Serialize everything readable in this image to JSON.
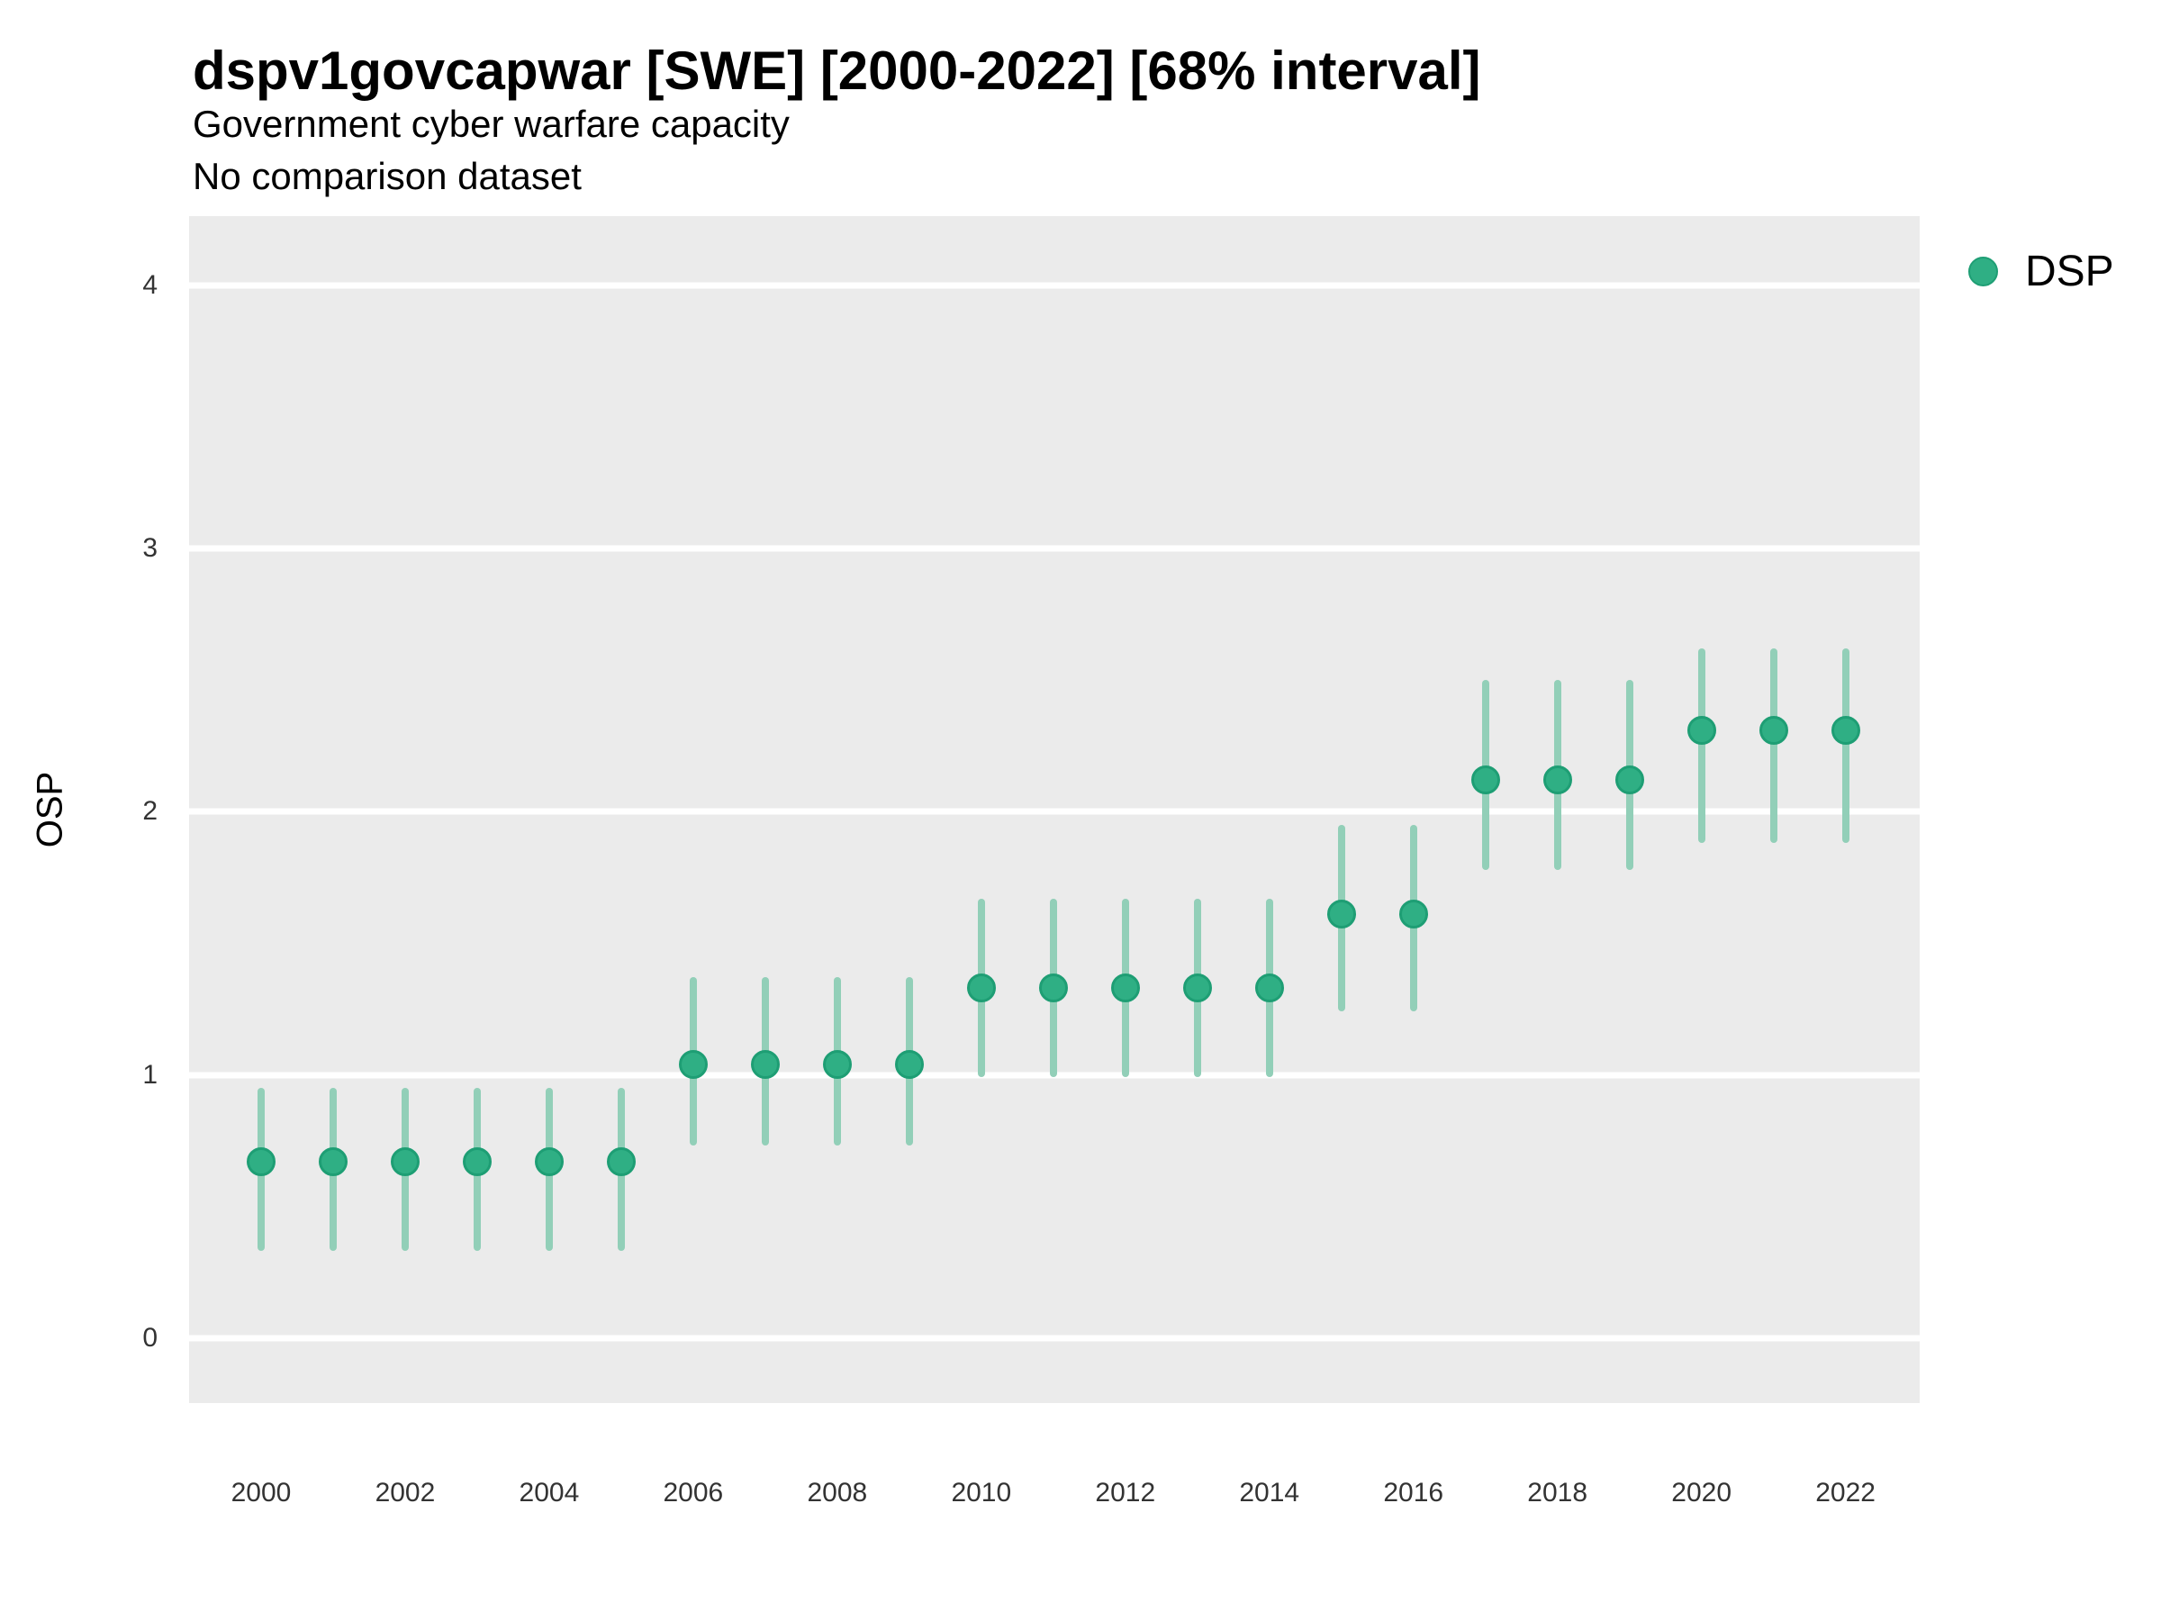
{
  "header": {
    "title": "dspv1govcapwar [SWE] [2000-2022] [68% interval]",
    "subtitle1": "Government cyber warfare capacity",
    "subtitle2": "No comparison dataset"
  },
  "legend": {
    "label": "DSP"
  },
  "colors": {
    "panel_background": "#EBEBEB",
    "gridline": "#FFFFFF",
    "point_fill": "#2FAF84",
    "point_stroke": "#1E9E74",
    "interval_bar": "#92CFB8",
    "tick_text": "#333333",
    "title_text": "#000000"
  },
  "chart_data": {
    "type": "pointrange",
    "title": "dspv1govcapwar [SWE] [2000-2022] [68% interval]",
    "subtitle": "Government cyber warfare capacity",
    "note": "No comparison dataset",
    "xlabel": "",
    "ylabel": "OSP",
    "legend_entries": [
      "DSP"
    ],
    "legend_position": "right-top",
    "grid": "horizontal-major-only",
    "interval_level": "68%",
    "x": [
      2000,
      2001,
      2002,
      2003,
      2004,
      2005,
      2006,
      2007,
      2008,
      2009,
      2010,
      2011,
      2012,
      2013,
      2014,
      2015,
      2016,
      2017,
      2018,
      2019,
      2020,
      2021,
      2022
    ],
    "series": [
      {
        "name": "DSP",
        "estimates": [
          0.67,
          0.67,
          0.67,
          0.67,
          0.67,
          0.67,
          1.04,
          1.04,
          1.04,
          1.04,
          1.33,
          1.33,
          1.33,
          1.33,
          1.33,
          1.61,
          1.61,
          2.12,
          2.12,
          2.12,
          2.31,
          2.31,
          2.31
        ],
        "lower": [
          0.33,
          0.33,
          0.33,
          0.33,
          0.33,
          0.33,
          0.73,
          0.73,
          0.73,
          0.73,
          0.99,
          0.99,
          0.99,
          0.99,
          0.99,
          1.24,
          1.24,
          1.78,
          1.78,
          1.78,
          1.88,
          1.88,
          1.88
        ],
        "upper": [
          0.95,
          0.95,
          0.95,
          0.95,
          0.95,
          0.95,
          1.37,
          1.37,
          1.37,
          1.37,
          1.67,
          1.67,
          1.67,
          1.67,
          1.67,
          1.95,
          1.95,
          2.5,
          2.5,
          2.5,
          2.62,
          2.62,
          2.62
        ]
      }
    ],
    "y_ticks": [
      0,
      1,
      2,
      3,
      4
    ],
    "x_tick_years": [
      2000,
      2002,
      2004,
      2006,
      2008,
      2010,
      2012,
      2014,
      2016,
      2018,
      2020,
      2022
    ],
    "ylim": [
      -0.247,
      4.263
    ],
    "xlim": [
      1999.0,
      2023.03
    ]
  }
}
